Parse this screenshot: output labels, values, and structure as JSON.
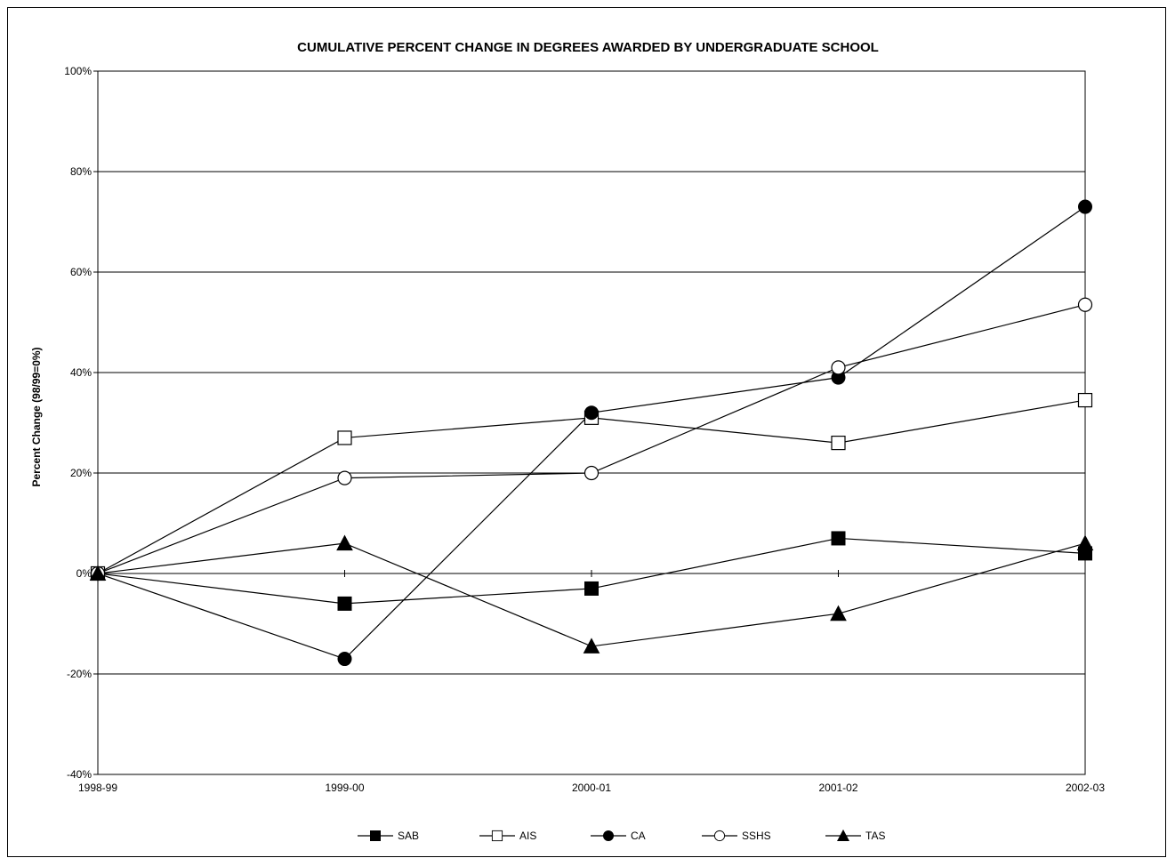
{
  "chart_data": {
    "type": "line",
    "title": "CUMULATIVE PERCENT CHANGE IN DEGREES AWARDED BY UNDERGRADUATE SCHOOL",
    "xlabel": "",
    "ylabel": "Percent Change (98/99=0%)",
    "categories": [
      "1998-99",
      "1999-00",
      "2000-01",
      "2001-02",
      "2002-03"
    ],
    "ylim": [
      -40,
      100
    ],
    "y_ticks": [
      -40,
      -20,
      0,
      20,
      40,
      60,
      80,
      100
    ],
    "y_tick_labels": [
      "-40%",
      "-20%",
      "0%",
      "20%",
      "40%",
      "60%",
      "80%",
      "100%"
    ],
    "grid": true,
    "legend_position": "bottom",
    "series": [
      {
        "name": "SAB",
        "marker": "filled-square",
        "values": [
          0,
          -6,
          -3,
          7,
          4
        ]
      },
      {
        "name": "AIS",
        "marker": "open-square",
        "values": [
          0,
          27,
          31,
          26,
          34.5
        ]
      },
      {
        "name": "CA",
        "marker": "filled-circle",
        "values": [
          0,
          -17,
          32,
          39,
          73
        ]
      },
      {
        "name": "SSHS",
        "marker": "open-circle",
        "values": [
          0,
          19,
          20,
          41,
          53.5
        ]
      },
      {
        "name": "TAS",
        "marker": "filled-triangle",
        "values": [
          0,
          6,
          -14.5,
          -8,
          6
        ]
      }
    ],
    "colors": {
      "line": "#000000",
      "grid": "#000000",
      "background": "#ffffff"
    }
  }
}
